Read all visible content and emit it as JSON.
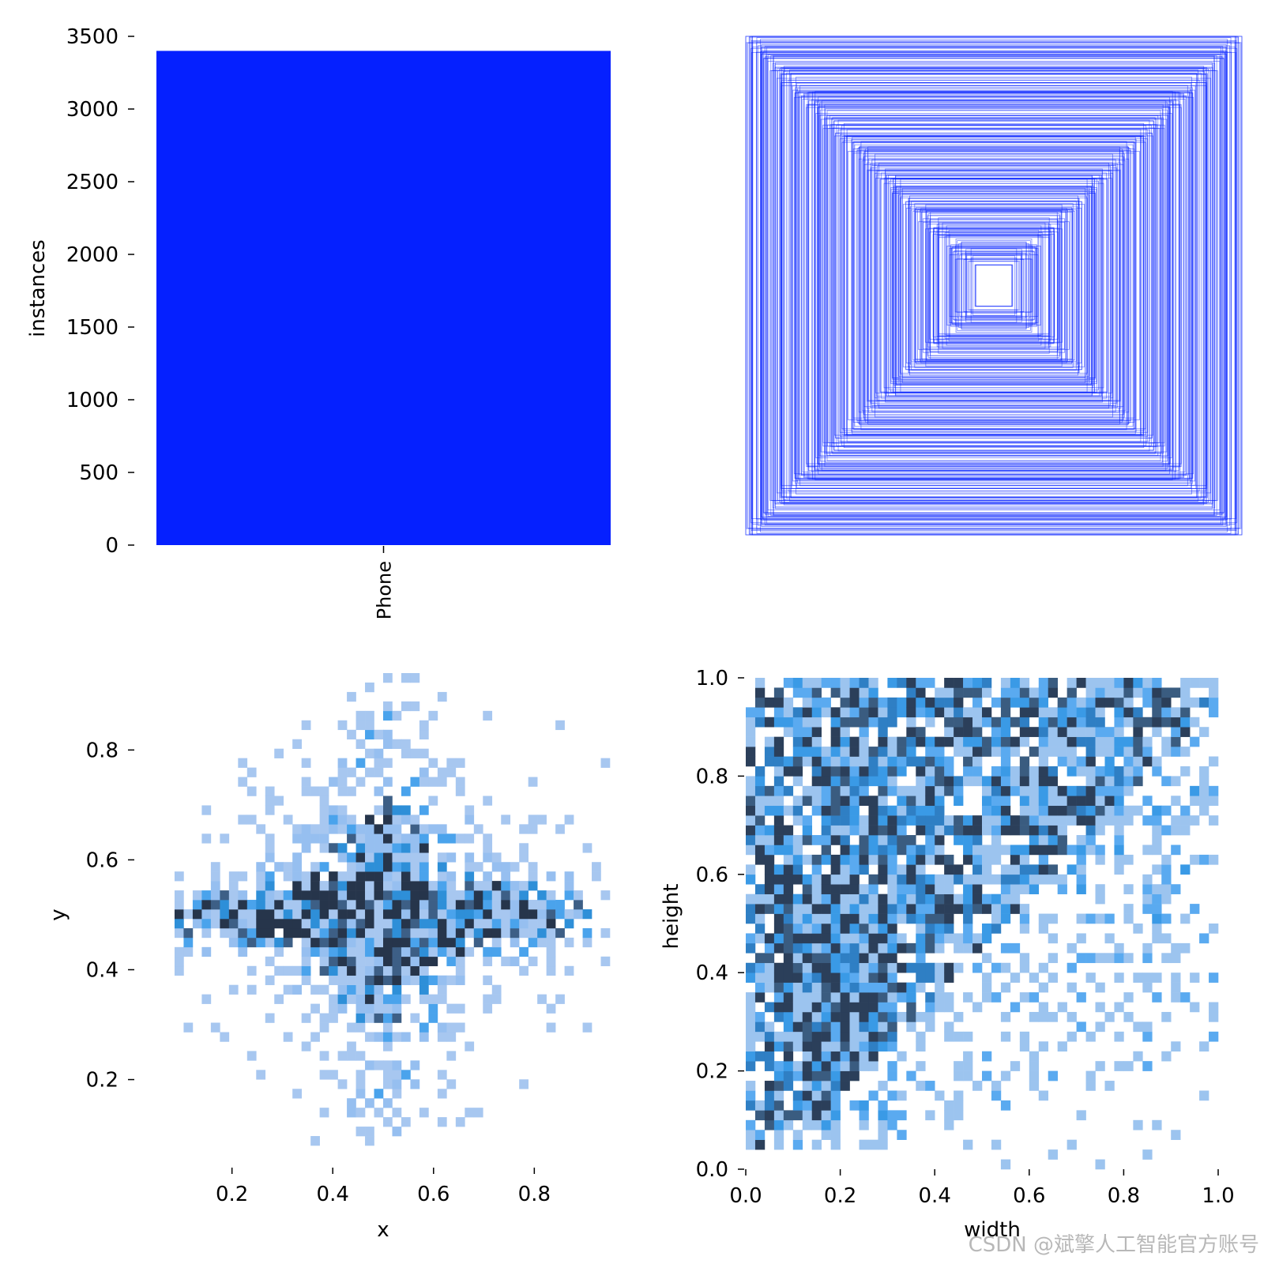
{
  "watermark": "CSDN @斌擎人工智能官方账号",
  "chart_data": [
    {
      "type": "bar",
      "ylabel": "instances",
      "categories": [
        "Phone"
      ],
      "values": [
        3400
      ],
      "color": "#0520FF",
      "ylim": [
        0,
        3500
      ],
      "yticks": [
        0,
        500,
        1000,
        1500,
        2000,
        2500,
        3000,
        3500
      ],
      "ytick_labels": [
        "0",
        "500",
        "1000",
        "1500",
        "2000",
        "2500",
        "3000",
        "3500"
      ]
    },
    {
      "type": "box_overlay",
      "description_color": "#0520FF",
      "box_sizes": [
        1.0,
        0.98,
        0.96,
        0.95,
        0.93,
        0.92,
        0.9,
        0.88,
        0.86,
        0.85,
        0.83,
        0.82,
        0.8,
        0.78,
        0.76,
        0.75,
        0.73,
        0.72,
        0.7,
        0.68,
        0.66,
        0.65,
        0.63,
        0.62,
        0.6,
        0.58,
        0.56,
        0.55,
        0.53,
        0.52,
        0.5,
        0.48,
        0.46,
        0.45,
        0.43,
        0.42,
        0.4,
        0.38,
        0.36,
        0.35,
        0.33,
        0.32,
        0.3,
        0.28,
        0.26,
        0.25,
        0.23,
        0.22,
        0.2,
        0.18,
        0.16,
        0.15,
        0.13,
        0.12,
        0.1
      ]
    },
    {
      "type": "heatmap",
      "xlabel": "x",
      "ylabel": "y",
      "xticks": [
        0.2,
        0.4,
        0.6,
        0.8
      ],
      "xtick_labels": [
        "0.2",
        "0.4",
        "0.6",
        "0.8"
      ],
      "yticks": [
        0.2,
        0.4,
        0.6,
        0.8
      ],
      "ytick_labels": [
        "0.2",
        "0.4",
        "0.6",
        "0.8"
      ],
      "xlim": [
        0.05,
        0.95
      ],
      "ylim": [
        0.08,
        0.94
      ],
      "bins": 50,
      "peak": [
        0.5,
        0.5
      ],
      "colors": [
        "#a7c7f0",
        "#96bff0",
        "#4aa3ec",
        "#2e8fd8",
        "#3d5f86",
        "#26354b"
      ]
    },
    {
      "type": "heatmap",
      "xlabel": "width",
      "ylabel": "height",
      "xticks": [
        0.0,
        0.2,
        0.4,
        0.6,
        0.8,
        1.0
      ],
      "xtick_labels": [
        "0.0",
        "0.2",
        "0.4",
        "0.6",
        "0.8",
        "1.0"
      ],
      "yticks": [
        0.0,
        0.2,
        0.4,
        0.6,
        0.8,
        1.0
      ],
      "ytick_labels": [
        "0.0",
        "0.2",
        "0.4",
        "0.6",
        "0.8",
        "1.0"
      ],
      "xlim": [
        0.0,
        1.0
      ],
      "ylim": [
        0.0,
        1.0
      ],
      "bins": 50,
      "peak": [
        0.2,
        0.35
      ],
      "colors": [
        "#9cc4ef",
        "#5aaaf0",
        "#3a9ae6",
        "#2f7fc4",
        "#3a5c80",
        "#2b3f5a"
      ]
    }
  ]
}
